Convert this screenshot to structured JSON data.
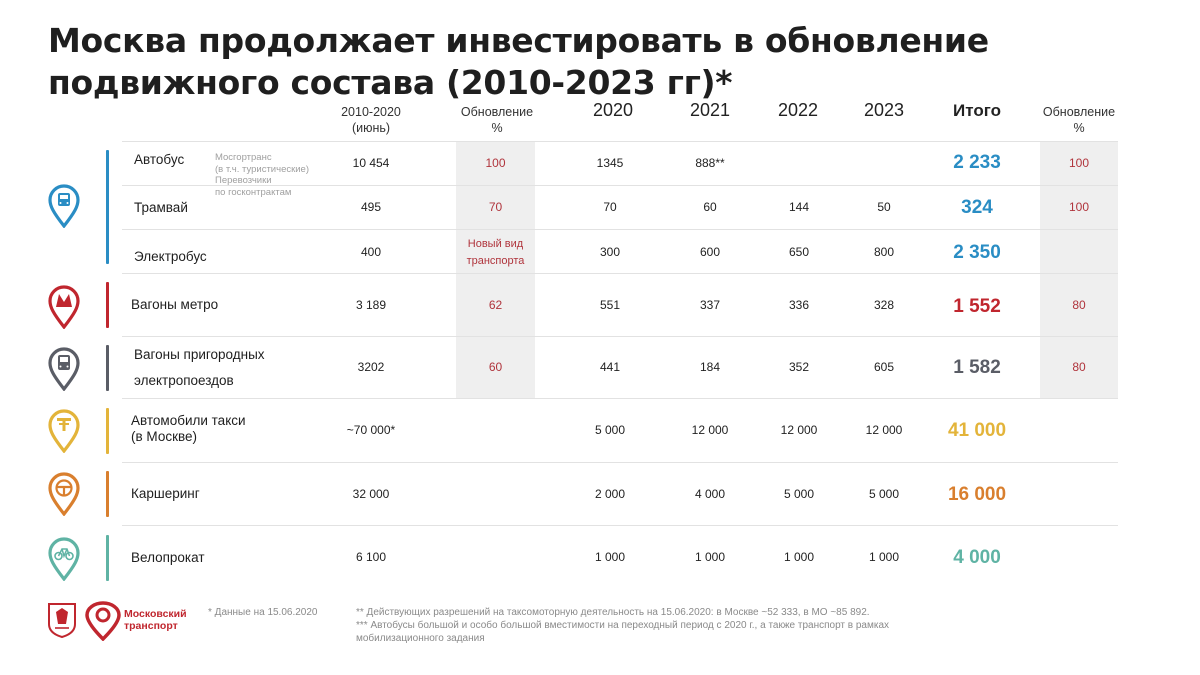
{
  "title": "Москва продолжает инвестировать в обновление подвижного состава (2010-2023 гг)*",
  "headers": {
    "period": "2010-2020\n(июнь)",
    "renewal1": "Обновление\n%",
    "y2020": "2020",
    "y2021": "2021",
    "y2022": "2022",
    "y2023": "2023",
    "total": "Итого",
    "renewal2": "Обновление\n%"
  },
  "bus_note": "Мосгортранс\n(в т.ч. туристические)\nПеревозчики\nпо госконтрактам",
  "rows": [
    {
      "label": "Автобус",
      "period": "10 454",
      "renewal1": "100",
      "y2020": "1345",
      "y2021": "888**",
      "y2022": "",
      "y2023": "",
      "total": "2 233",
      "renewal2": "100"
    },
    {
      "label": "Трамвай",
      "period": "495",
      "renewal1": "70",
      "y2020": "70",
      "y2021": "60",
      "y2022": "144",
      "y2023": "50",
      "total": "324",
      "renewal2": "100"
    },
    {
      "label": "Электробус",
      "period": "400",
      "renewal1": "Новый вид\nтранспорта",
      "y2020": "300",
      "y2021": "600",
      "y2022": "650",
      "y2023": "800",
      "total": "2 350",
      "renewal2": ""
    },
    {
      "label": "Вагоны метро",
      "period": "3 189",
      "renewal1": "62",
      "y2020": "551",
      "y2021": "337",
      "y2022": "336",
      "y2023": "328",
      "total": "1 552",
      "renewal2": "80"
    },
    {
      "label": "Вагоны пригородных\nэлектропоездов",
      "period": "3202",
      "renewal1": "60",
      "y2020": "441",
      "y2021": "184",
      "y2022": "352",
      "y2023": "605",
      "total": "1 582",
      "renewal2": "80"
    },
    {
      "label": "Автомобили такси\n(в Москве)",
      "period": "~70 000*",
      "renewal1": "",
      "y2020": "5 000",
      "y2021": "12 000",
      "y2022": "12 000",
      "y2023": "12 000",
      "total": "41 000",
      "renewal2": ""
    },
    {
      "label": "Каршеринг",
      "period": "32 000",
      "renewal1": "",
      "y2020": "2 000",
      "y2021": "4 000",
      "y2022": "5 000",
      "y2023": "5 000",
      "total": "16 000",
      "renewal2": ""
    },
    {
      "label": "Велопрокат",
      "period": "6 100",
      "renewal1": "",
      "y2020": "1 000",
      "y2021": "1 000",
      "y2022": "1 000",
      "y2023": "1 000",
      "total": "4 000",
      "renewal2": ""
    }
  ],
  "colors": {
    "ground": "#2a8dc4",
    "metro": "#c0262e",
    "rail": "#5a5d66",
    "taxi": "#e3b43a",
    "carsharing": "#d97f2e",
    "bike": "#5fb3a4",
    "renewal_text": "#b0343c"
  },
  "icons": [
    "bus-tram-icon",
    "metro-icon",
    "suburban-train-icon",
    "taxi-icon",
    "steering-wheel-icon",
    "bicycle-icon"
  ],
  "footer": {
    "logo_text": "Московский\nтранспорт",
    "note1": "* Данные на 15.06.2020",
    "note2": "** Действующих разрешений на таксомоторную деятельность на 15.06.2020: в Москве ~52 333, в МО ~85 892.",
    "note3": "*** Автобусы большой и особо большой вместимости на переходный период с 2020 г.,  а также транспорт в рамках\nмобилизационного задания"
  }
}
